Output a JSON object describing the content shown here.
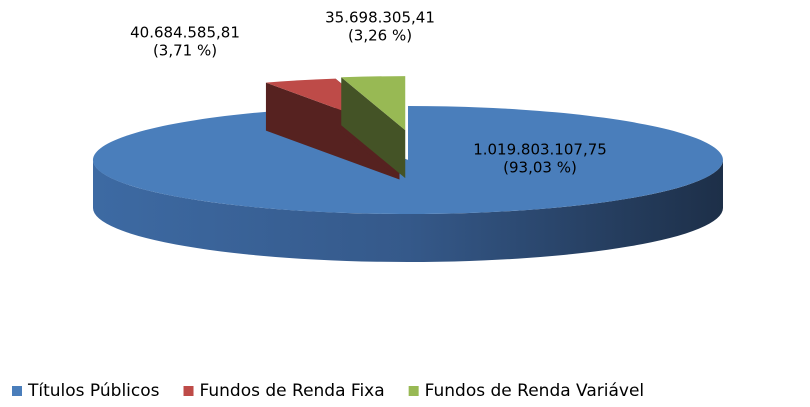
{
  "chart_data": {
    "type": "pie",
    "categories": [
      "Títulos Públicos",
      "Fundos de Renda Fixa",
      "Fundos de Renda Variável"
    ],
    "values": [
      1019803107.75,
      40684585.81,
      35698305.41
    ],
    "value_labels": [
      "1.019.803.107,75",
      "40.684.585,81",
      "35.698.305,41"
    ],
    "percents": [
      93.03,
      3.71,
      3.26
    ],
    "percent_labels": [
      "(93,03 %)",
      "(3,71 %)",
      "(3,26 %)"
    ],
    "colors": [
      "#4a7ebb",
      "#be4b48",
      "#98b954"
    ],
    "legend": "bottom",
    "three_d": true
  }
}
